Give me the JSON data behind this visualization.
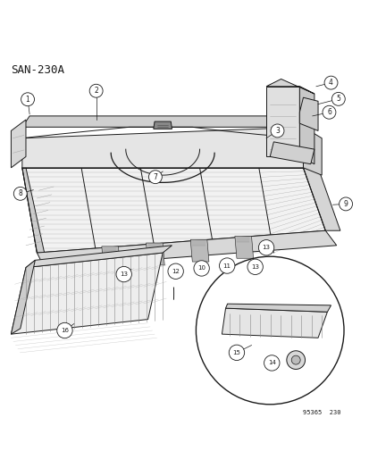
{
  "title": "SAN-230A",
  "footer": "95365  230",
  "bg_color": "#ffffff",
  "line_color": "#1a1a1a",
  "gray_light": "#e8e8e8",
  "gray_mid": "#cccccc",
  "gray_dark": "#aaaaaa",
  "gray_darker": "#888888"
}
